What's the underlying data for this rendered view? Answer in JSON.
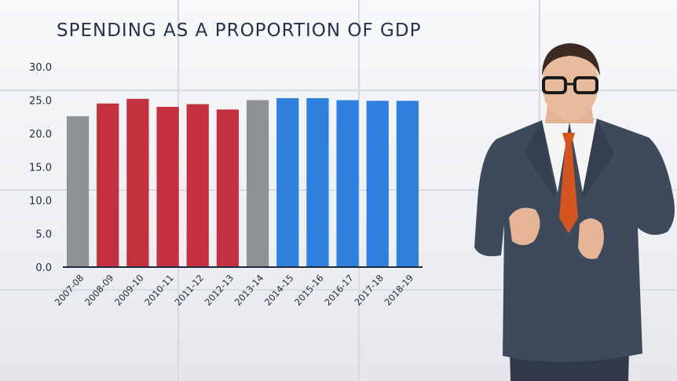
{
  "chart_data": {
    "type": "bar",
    "title": "SPENDING AS A PROPORTION OF GDP",
    "xlabel": "",
    "ylabel": "",
    "ylim": [
      0,
      30
    ],
    "yticks": [
      "0.0",
      "5.0",
      "10.0",
      "15.0",
      "20.0",
      "25.0",
      "30.0"
    ],
    "grid": false,
    "categories": [
      "2007-08",
      "2008-09",
      "2009-10",
      "2010-11",
      "2011-12",
      "2012-13",
      "2013-14",
      "2014-15",
      "2015-16",
      "2016-17",
      "2017-18",
      "2018-19"
    ],
    "values": [
      22.6,
      24.5,
      25.2,
      24.0,
      24.4,
      23.6,
      25.0,
      25.3,
      25.3,
      25.0,
      24.9,
      24.9
    ],
    "bar_colors": [
      "#8e9196",
      "#c2313d",
      "#c2313d",
      "#c2313d",
      "#c2313d",
      "#c2313d",
      "#8e9196",
      "#2f7fde",
      "#2f7fde",
      "#2f7fde",
      "#2f7fde",
      "#2f7fde"
    ]
  }
}
